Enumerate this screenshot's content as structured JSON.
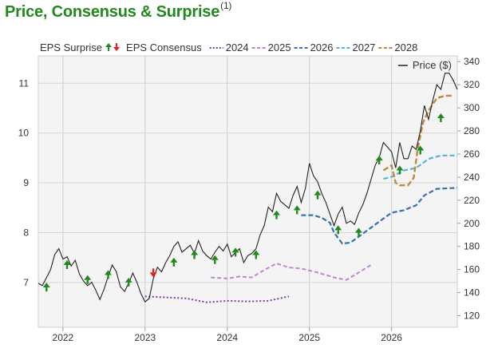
{
  "title": "Price, Consensus & Surprise",
  "title_note": "(1)",
  "chart_data": {
    "type": "line",
    "legend": {
      "surprise_label": "EPS Surprise",
      "consensus_label": "EPS Consensus",
      "series_labels": [
        "2024",
        "2025",
        "2026",
        "2027",
        "2028"
      ],
      "price_label": "Price ($)",
      "placement": "top"
    },
    "x_ticks": [
      "2022",
      "2023",
      "2024",
      "2025",
      "2026"
    ],
    "x_range": [
      2021.7,
      2026.8
    ],
    "left_axis": {
      "ticks": [
        7,
        8,
        9,
        10,
        11
      ],
      "range": [
        6.1,
        11.55
      ]
    },
    "right_axis": {
      "ticks": [
        120,
        140,
        160,
        180,
        200,
        220,
        240,
        260,
        280,
        300,
        320,
        340
      ],
      "range": [
        110,
        345
      ]
    },
    "colors": {
      "2024": "#7b3f9e",
      "2025": "#b988cc",
      "2026": "#3670b3",
      "2027": "#57b3dc",
      "2028": "#c08a3e",
      "price": "#222222",
      "up": "#1e8a1e",
      "down": "#e01f1f"
    },
    "price": [
      [
        2021.7,
        148
      ],
      [
        2021.75,
        146
      ],
      [
        2021.8,
        153
      ],
      [
        2021.85,
        160
      ],
      [
        2021.9,
        173
      ],
      [
        2021.95,
        178
      ],
      [
        2022.0,
        169
      ],
      [
        2022.05,
        171
      ],
      [
        2022.1,
        163
      ],
      [
        2022.15,
        168
      ],
      [
        2022.2,
        156
      ],
      [
        2022.25,
        150
      ],
      [
        2022.3,
        146
      ],
      [
        2022.35,
        149
      ],
      [
        2022.4,
        142
      ],
      [
        2022.45,
        134
      ],
      [
        2022.5,
        143
      ],
      [
        2022.55,
        154
      ],
      [
        2022.6,
        164
      ],
      [
        2022.65,
        158
      ],
      [
        2022.7,
        145
      ],
      [
        2022.75,
        141
      ],
      [
        2022.8,
        148
      ],
      [
        2022.85,
        157
      ],
      [
        2022.9,
        149
      ],
      [
        2022.95,
        139
      ],
      [
        2023.0,
        132
      ],
      [
        2023.05,
        135
      ],
      [
        2023.1,
        152
      ],
      [
        2023.15,
        162
      ],
      [
        2023.2,
        158
      ],
      [
        2023.25,
        166
      ],
      [
        2023.3,
        172
      ],
      [
        2023.35,
        180
      ],
      [
        2023.4,
        184
      ],
      [
        2023.45,
        175
      ],
      [
        2023.5,
        178
      ],
      [
        2023.55,
        181
      ],
      [
        2023.6,
        174
      ],
      [
        2023.65,
        185
      ],
      [
        2023.7,
        176
      ],
      [
        2023.75,
        172
      ],
      [
        2023.8,
        169
      ],
      [
        2023.85,
        175
      ],
      [
        2023.9,
        180
      ],
      [
        2023.95,
        176
      ],
      [
        2024.0,
        182
      ],
      [
        2024.05,
        171
      ],
      [
        2024.1,
        175
      ],
      [
        2024.15,
        178
      ],
      [
        2024.2,
        166
      ],
      [
        2024.25,
        172
      ],
      [
        2024.3,
        174
      ],
      [
        2024.35,
        178
      ],
      [
        2024.4,
        190
      ],
      [
        2024.45,
        198
      ],
      [
        2024.5,
        214
      ],
      [
        2024.55,
        210
      ],
      [
        2024.6,
        226
      ],
      [
        2024.65,
        219
      ],
      [
        2024.7,
        216
      ],
      [
        2024.75,
        213
      ],
      [
        2024.8,
        224
      ],
      [
        2024.85,
        232
      ],
      [
        2024.9,
        218
      ],
      [
        2024.95,
        230
      ],
      [
        2025.0,
        252
      ],
      [
        2025.05,
        241
      ],
      [
        2025.1,
        236
      ],
      [
        2025.15,
        226
      ],
      [
        2025.2,
        218
      ],
      [
        2025.25,
        208
      ],
      [
        2025.3,
        198
      ],
      [
        2025.35,
        208
      ],
      [
        2025.4,
        214
      ],
      [
        2025.45,
        200
      ],
      [
        2025.5,
        202
      ],
      [
        2025.55,
        199
      ],
      [
        2025.6,
        209
      ],
      [
        2025.65,
        216
      ],
      [
        2025.7,
        226
      ],
      [
        2025.75,
        238
      ],
      [
        2025.8,
        250
      ],
      [
        2025.85,
        257
      ],
      [
        2025.9,
        270
      ],
      [
        2025.95,
        266
      ],
      [
        2026.0,
        262
      ],
      [
        2026.05,
        248
      ],
      [
        2026.1,
        270
      ],
      [
        2026.15,
        256
      ],
      [
        2026.2,
        256
      ],
      [
        2026.25,
        267
      ],
      [
        2026.3,
        264
      ],
      [
        2026.35,
        280
      ],
      [
        2026.4,
        302
      ],
      [
        2026.45,
        290
      ],
      [
        2026.5,
        306
      ],
      [
        2026.55,
        320
      ],
      [
        2026.6,
        316
      ],
      [
        2026.65,
        330
      ],
      [
        2026.7,
        330
      ],
      [
        2026.75,
        324
      ],
      [
        2026.8,
        316
      ]
    ],
    "consensus": {
      "2024": [
        [
          2023.0,
          6.72
        ],
        [
          2023.25,
          6.7
        ],
        [
          2023.5,
          6.68
        ],
        [
          2023.75,
          6.6
        ],
        [
          2024.0,
          6.63
        ],
        [
          2024.25,
          6.62
        ],
        [
          2024.5,
          6.63
        ],
        [
          2024.75,
          6.72
        ]
      ],
      "2025": [
        [
          2023.8,
          7.1
        ],
        [
          2024.0,
          7.08
        ],
        [
          2024.15,
          7.12
        ],
        [
          2024.3,
          7.1
        ],
        [
          2024.45,
          7.25
        ],
        [
          2024.6,
          7.38
        ],
        [
          2024.75,
          7.3
        ],
        [
          2024.9,
          7.28
        ],
        [
          2025.1,
          7.2
        ],
        [
          2025.3,
          7.1
        ],
        [
          2025.45,
          7.05
        ],
        [
          2025.6,
          7.2
        ],
        [
          2025.75,
          7.35
        ]
      ],
      "2026": [
        [
          2024.9,
          8.35
        ],
        [
          2025.05,
          8.35
        ],
        [
          2025.15,
          8.3
        ],
        [
          2025.25,
          8.2
        ],
        [
          2025.3,
          8.0
        ],
        [
          2025.4,
          7.78
        ],
        [
          2025.5,
          7.8
        ],
        [
          2025.6,
          7.92
        ],
        [
          2025.75,
          8.1
        ],
        [
          2025.85,
          8.22
        ],
        [
          2026.0,
          8.4
        ],
        [
          2026.15,
          8.45
        ],
        [
          2026.3,
          8.55
        ],
        [
          2026.4,
          8.75
        ],
        [
          2026.55,
          8.88
        ],
        [
          2026.8,
          8.9
        ]
      ],
      "2027": [
        [
          2025.9,
          9.08
        ],
        [
          2026.0,
          9.12
        ],
        [
          2026.15,
          9.25
        ],
        [
          2026.3,
          9.3
        ],
        [
          2026.45,
          9.48
        ],
        [
          2026.6,
          9.55
        ],
        [
          2026.8,
          9.55
        ]
      ],
      "2028": [
        [
          2025.9,
          9.25
        ],
        [
          2026.0,
          9.35
        ],
        [
          2026.05,
          9.0
        ],
        [
          2026.1,
          8.95
        ],
        [
          2026.2,
          8.95
        ],
        [
          2026.27,
          9.1
        ],
        [
          2026.32,
          9.7
        ],
        [
          2026.38,
          10.2
        ],
        [
          2026.45,
          10.45
        ],
        [
          2026.55,
          10.7
        ],
        [
          2026.65,
          10.75
        ],
        [
          2026.75,
          10.75
        ]
      ]
    },
    "surprise_markers": [
      {
        "x": 2021.8,
        "v": 6.9,
        "dir": "up"
      },
      {
        "x": 2022.05,
        "v": 7.35,
        "dir": "up"
      },
      {
        "x": 2022.3,
        "v": 7.05,
        "dir": "up"
      },
      {
        "x": 2022.55,
        "v": 7.15,
        "dir": "up"
      },
      {
        "x": 2022.8,
        "v": 7.0,
        "dir": "up"
      },
      {
        "x": 2023.1,
        "v": 7.2,
        "dir": "down"
      },
      {
        "x": 2023.35,
        "v": 7.4,
        "dir": "up"
      },
      {
        "x": 2023.6,
        "v": 7.55,
        "dir": "up"
      },
      {
        "x": 2023.85,
        "v": 7.45,
        "dir": "up"
      },
      {
        "x": 2024.1,
        "v": 7.6,
        "dir": "up"
      },
      {
        "x": 2024.35,
        "v": 7.55,
        "dir": "up"
      },
      {
        "x": 2024.6,
        "v": 8.35,
        "dir": "up"
      },
      {
        "x": 2024.85,
        "v": 8.45,
        "dir": "up"
      },
      {
        "x": 2025.1,
        "v": 8.75,
        "dir": "up"
      },
      {
        "x": 2025.35,
        "v": 8.05,
        "dir": "up"
      },
      {
        "x": 2025.6,
        "v": 8.0,
        "dir": "up"
      },
      {
        "x": 2025.85,
        "v": 9.45,
        "dir": "up"
      },
      {
        "x": 2026.1,
        "v": 9.25,
        "dir": "up"
      },
      {
        "x": 2026.35,
        "v": 9.65,
        "dir": "up"
      },
      {
        "x": 2026.6,
        "v": 10.3,
        "dir": "up"
      }
    ]
  }
}
